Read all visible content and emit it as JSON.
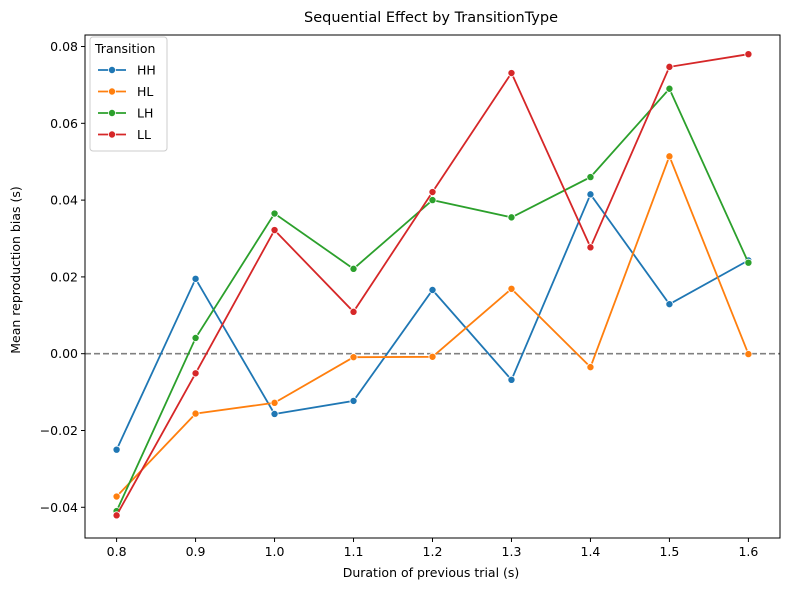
{
  "chart_data": {
    "type": "line",
    "title": "Sequential Effect by TransitionType",
    "xlabel": "Duration of previous trial (s)",
    "ylabel": "Mean reproduction bias (s)",
    "x": [
      0.8,
      0.9,
      1.0,
      1.1,
      1.2,
      1.3,
      1.4,
      1.5,
      1.6
    ],
    "x_tick_labels": [
      "0.8",
      "0.9",
      "1.0",
      "1.1",
      "1.2",
      "1.3",
      "1.4",
      "1.5",
      "1.6"
    ],
    "xlim": [
      0.76,
      1.64
    ],
    "ylim": [
      -0.048,
      0.083
    ],
    "y_ticks": [
      -0.04,
      -0.02,
      0.0,
      0.02,
      0.04,
      0.06,
      0.08
    ],
    "y_tick_labels": [
      "−0.04",
      "−0.02",
      "0.00",
      "0.02",
      "0.04",
      "0.06",
      "0.08"
    ],
    "reference_line": {
      "y": 0.0,
      "style": "dashed",
      "color": "#808080"
    },
    "grid": false,
    "legend": {
      "title": "Transition",
      "position": "top-left"
    },
    "series": [
      {
        "name": "HH",
        "color": "#1f77b4",
        "values": [
          -0.025,
          0.0195,
          -0.0157,
          -0.0123,
          0.0166,
          -0.0068,
          0.0415,
          0.0129,
          0.0243
        ]
      },
      {
        "name": "HL",
        "color": "#ff7f0e",
        "values": [
          -0.0372,
          -0.0156,
          -0.0128,
          -0.0009,
          -0.0008,
          0.0169,
          -0.0035,
          0.0514,
          -0.0001
        ]
      },
      {
        "name": "LH",
        "color": "#2ca02c",
        "values": [
          -0.041,
          0.0041,
          0.0365,
          0.0221,
          0.04,
          0.0355,
          0.046,
          0.069,
          0.0237
        ]
      },
      {
        "name": "LL",
        "color": "#d62728",
        "values": [
          -0.0421,
          -0.0051,
          0.0322,
          0.0109,
          0.0421,
          0.0731,
          0.0277,
          0.0747,
          0.078
        ]
      }
    ]
  }
}
